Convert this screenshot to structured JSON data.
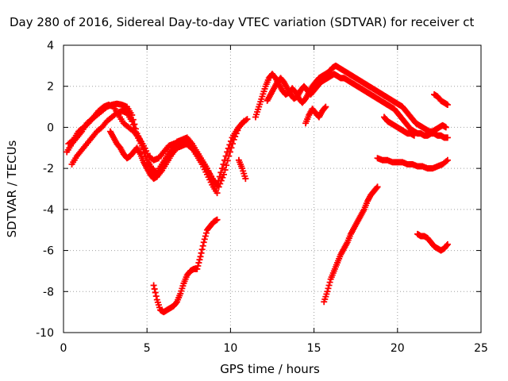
{
  "chart_data": {
    "type": "scatter",
    "title": "Day 280 of 2016, Sidereal Day-to-day VTEC variation (SDTVAR) for receiver ct",
    "xlabel": "GPS time / hours",
    "ylabel": "SDTVAR / TECUs",
    "xlim": [
      0,
      25
    ],
    "ylim": [
      -10,
      4
    ],
    "xticks": [
      0,
      5,
      10,
      15,
      20,
      25
    ],
    "yticks": [
      -10,
      -8,
      -6,
      -4,
      -2,
      0,
      2,
      4
    ],
    "grid": true,
    "marker": "plus",
    "color": "#ff0000",
    "series": [
      {
        "x": [
          0.2,
          0.5,
          0.8,
          1.1,
          1.4,
          1.7,
          2.0,
          2.3,
          2.6,
          2.9,
          3.2,
          3.5,
          3.8,
          4.1,
          4.4,
          4.7,
          5.0,
          5.3,
          5.6,
          5.9,
          6.2,
          6.5,
          6.8,
          7.1,
          7.4,
          7.7,
          8.0,
          8.3,
          8.6,
          8.9,
          9.2,
          9.5,
          9.8,
          10.1,
          10.4,
          10.7,
          11.0
        ],
        "y": [
          -1.2,
          -0.8,
          -0.5,
          -0.2,
          0.2,
          0.4,
          0.6,
          0.8,
          1.0,
          1.1,
          1.15,
          1.1,
          1.0,
          0.6,
          -0.3,
          -0.8,
          -1.6,
          -2.0,
          -2.2,
          -1.8,
          -1.4,
          -1.0,
          -0.7,
          -0.6,
          -0.5,
          -0.8,
          -1.2,
          -1.6,
          -2.0,
          -2.5,
          -2.8,
          -2.0,
          -1.2,
          -0.5,
          -0.1,
          0.2,
          0.4
        ]
      },
      {
        "x": [
          0.5,
          0.8,
          1.1,
          1.4,
          1.7,
          2.0,
          2.3,
          2.6,
          2.9,
          3.2,
          3.5,
          3.8,
          4.1,
          4.4,
          4.7,
          5.0,
          5.3,
          5.6,
          5.9,
          6.2,
          6.5,
          6.8,
          7.1,
          7.4,
          7.7,
          8.0,
          8.3,
          8.6,
          8.9,
          9.2
        ],
        "y": [
          -1.8,
          -1.4,
          -1.1,
          -0.8,
          -0.5,
          -0.2,
          0.0,
          0.3,
          0.5,
          0.7,
          0.8,
          0.7,
          0.3,
          -0.4,
          -0.9,
          -1.6,
          -2.2,
          -2.4,
          -2.1,
          -1.7,
          -1.3,
          -1.0,
          -0.9,
          -0.8,
          -1.0,
          -1.4,
          -1.8,
          -2.3,
          -2.8,
          -3.2
        ]
      },
      {
        "x": [
          0.3,
          0.6,
          0.9,
          1.2,
          1.5,
          1.8,
          2.1,
          2.4,
          2.7,
          3.0,
          3.3,
          3.6,
          3.9,
          4.2,
          4.5,
          4.8,
          5.1,
          5.4,
          5.7,
          6.0,
          6.3,
          6.6,
          6.9,
          7.2,
          7.5,
          7.8,
          8.1,
          8.4,
          8.7,
          9.0,
          9.3,
          9.6,
          9.9,
          10.2,
          10.5,
          10.8
        ],
        "y": [
          -0.8,
          -0.6,
          -0.2,
          0.0,
          0.2,
          0.5,
          0.8,
          1.0,
          1.1,
          1.0,
          0.6,
          0.2,
          0.0,
          -0.2,
          -0.5,
          -0.9,
          -1.4,
          -1.6,
          -1.5,
          -1.2,
          -0.9,
          -0.8,
          -0.7,
          -0.7,
          -0.9,
          -1.1,
          -1.4,
          -1.8,
          -2.2,
          -2.6,
          -2.9,
          -2.3,
          -1.4,
          -0.6,
          0.0,
          0.3
        ]
      },
      {
        "x": [
          2.8,
          3.0,
          3.2,
          3.4,
          3.6,
          3.8,
          4.0,
          4.2,
          4.4,
          4.6,
          4.8,
          5.0,
          5.2,
          5.4,
          5.6
        ],
        "y": [
          -0.2,
          -0.5,
          -0.8,
          -1.0,
          -1.3,
          -1.5,
          -1.4,
          -1.2,
          -1.0,
          -1.3,
          -1.7,
          -2.0,
          -2.3,
          -2.5,
          -2.4
        ]
      },
      {
        "x": [
          10.5,
          10.7,
          10.9
        ],
        "y": [
          -1.6,
          -2.0,
          -2.5
        ]
      },
      {
        "x": [
          11.5,
          11.7,
          11.9,
          12.1,
          12.3,
          12.5,
          12.7,
          12.9,
          13.1,
          13.3,
          13.5,
          13.7,
          13.9,
          14.1,
          14.3,
          14.5,
          14.7,
          14.9,
          15.1,
          15.3,
          15.5,
          15.7,
          15.9,
          16.1,
          16.3,
          16.5,
          16.7,
          16.9,
          17.1,
          17.3,
          17.5,
          17.7,
          17.9,
          18.1,
          18.3,
          18.5,
          18.7,
          18.9,
          19.1,
          19.3,
          19.5,
          19.7,
          19.9,
          20.1,
          20.3,
          20.5,
          20.7,
          20.9,
          21.1,
          21.3,
          21.5,
          21.7,
          21.9,
          22.1,
          22.3,
          22.5,
          22.7,
          22.9
        ],
        "y": [
          0.5,
          1.0,
          1.5,
          2.0,
          2.4,
          2.6,
          2.4,
          2.1,
          1.8,
          1.6,
          1.7,
          1.9,
          1.7,
          1.4,
          1.2,
          1.4,
          1.7,
          2.0,
          2.2,
          2.4,
          2.5,
          2.6,
          2.7,
          2.9,
          3.0,
          2.9,
          2.8,
          2.7,
          2.6,
          2.5,
          2.4,
          2.3,
          2.2,
          2.1,
          2.0,
          1.9,
          1.8,
          1.7,
          1.6,
          1.5,
          1.4,
          1.3,
          1.2,
          1.1,
          1.0,
          0.8,
          0.6,
          0.4,
          0.2,
          0.1,
          0.0,
          -0.1,
          -0.2,
          -0.2,
          -0.1,
          0.0,
          0.1,
          0.0
        ]
      },
      {
        "x": [
          12.2,
          12.4,
          12.6,
          12.8,
          13.0,
          13.2,
          13.4,
          13.6,
          13.8,
          14.0,
          14.2,
          14.4,
          14.6,
          14.8,
          15.0,
          15.2,
          15.4,
          15.6,
          15.8,
          16.0,
          16.2,
          16.4,
          16.6,
          16.8,
          17.0,
          17.2,
          17.4,
          17.6,
          17.8,
          18.0,
          18.2,
          18.4,
          18.6,
          18.8,
          19.0,
          19.2,
          19.4,
          19.6,
          19.8,
          20.0,
          20.2,
          20.4,
          20.6,
          20.8,
          21.0,
          21.2,
          21.4,
          21.6,
          21.8,
          22.0,
          22.2,
          22.4,
          22.6,
          22.8,
          23.0
        ],
        "y": [
          1.3,
          1.6,
          1.9,
          2.2,
          2.4,
          2.2,
          1.9,
          1.6,
          1.4,
          1.5,
          1.8,
          2.0,
          1.8,
          1.6,
          1.8,
          2.0,
          2.2,
          2.3,
          2.4,
          2.5,
          2.6,
          2.5,
          2.4,
          2.4,
          2.3,
          2.2,
          2.1,
          2.0,
          1.9,
          1.8,
          1.7,
          1.6,
          1.5,
          1.4,
          1.3,
          1.2,
          1.1,
          1.0,
          0.9,
          0.7,
          0.5,
          0.3,
          0.1,
          -0.1,
          -0.2,
          -0.3,
          -0.3,
          -0.4,
          -0.4,
          -0.3,
          -0.3,
          -0.4,
          -0.4,
          -0.5,
          -0.5
        ]
      },
      {
        "x": [
          14.5,
          14.7,
          14.9,
          15.1,
          15.3,
          15.5,
          15.7
        ],
        "y": [
          0.2,
          0.6,
          0.9,
          0.7,
          0.5,
          0.8,
          1.0
        ]
      },
      {
        "x": [
          19.2,
          19.4,
          19.6,
          19.8,
          20.0,
          20.2,
          20.4,
          20.6,
          20.8,
          21.0
        ],
        "y": [
          0.5,
          0.3,
          0.2,
          0.1,
          0.0,
          -0.1,
          -0.2,
          -0.3,
          -0.3,
          -0.4
        ]
      },
      {
        "x": [
          18.8,
          19.1,
          19.4,
          19.7,
          20.0,
          20.3,
          20.6,
          20.9,
          21.2,
          21.5,
          21.8,
          22.1,
          22.4,
          22.7,
          23.0
        ],
        "y": [
          -1.5,
          -1.6,
          -1.6,
          -1.7,
          -1.7,
          -1.7,
          -1.8,
          -1.8,
          -1.9,
          -1.9,
          -2.0,
          -2.0,
          -1.9,
          -1.8,
          -1.6
        ]
      },
      {
        "x": [
          22.2,
          22.4,
          22.6,
          22.8,
          23.0
        ],
        "y": [
          1.6,
          1.5,
          1.3,
          1.2,
          1.1
        ]
      },
      {
        "x": [
          5.4,
          5.6,
          5.8,
          6.0,
          6.2,
          6.4,
          6.6,
          6.8,
          7.0,
          7.2,
          7.4,
          7.6,
          7.8,
          8.0,
          8.2,
          8.4,
          8.6,
          8.8,
          9.0,
          9.2
        ],
        "y": [
          -7.7,
          -8.4,
          -8.9,
          -9.0,
          -8.9,
          -8.8,
          -8.7,
          -8.5,
          -8.1,
          -7.6,
          -7.2,
          -7.0,
          -6.9,
          -6.9,
          -6.3,
          -5.6,
          -5.0,
          -4.8,
          -4.6,
          -4.5
        ]
      },
      {
        "x": [
          15.6,
          15.8,
          16.0,
          16.2,
          16.4,
          16.6,
          16.8,
          17.0,
          17.2,
          17.4,
          17.6,
          17.8,
          18.0,
          18.2,
          18.4,
          18.6,
          18.8
        ],
        "y": [
          -8.5,
          -8.0,
          -7.4,
          -7.0,
          -6.6,
          -6.2,
          -5.9,
          -5.6,
          -5.2,
          -4.9,
          -4.6,
          -4.3,
          -4.0,
          -3.6,
          -3.3,
          -3.1,
          -2.9
        ]
      },
      {
        "x": [
          21.2,
          21.4,
          21.6,
          21.8,
          22.0,
          22.2,
          22.4,
          22.6,
          22.8,
          23.0
        ],
        "y": [
          -5.2,
          -5.3,
          -5.3,
          -5.4,
          -5.6,
          -5.8,
          -5.9,
          -6.0,
          -5.9,
          -5.7
        ]
      }
    ]
  }
}
